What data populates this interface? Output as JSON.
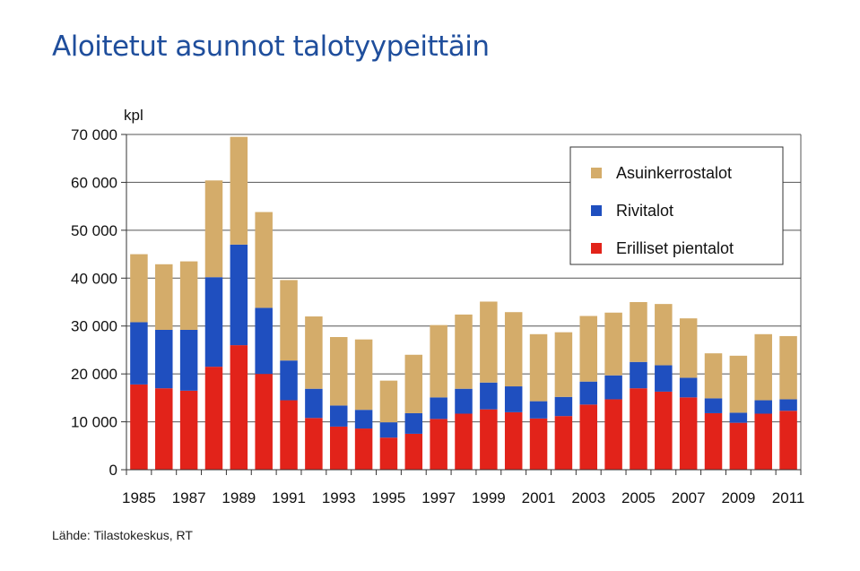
{
  "title": "Aloitetut asunnot talotyypeittäin",
  "source": "Lähde: Tilastokeskus,  RT",
  "chart_data": {
    "type": "bar",
    "stacked": true,
    "ylabel": "kpl",
    "ylim": [
      0,
      70000
    ],
    "yticks": [
      0,
      10000,
      20000,
      30000,
      40000,
      50000,
      60000,
      70000
    ],
    "ytick_labels": [
      "0",
      "10 000",
      "20 000",
      "30 000",
      "40 000",
      "50 000",
      "60 000",
      "70 000"
    ],
    "grid": true,
    "legend_position": "top-right",
    "categories": [
      "1985",
      "1986",
      "1987",
      "1988",
      "1989",
      "1990",
      "1991",
      "1992",
      "1993",
      "1994",
      "1995",
      "1996",
      "1997",
      "1998",
      "1999",
      "2000",
      "2001",
      "2002",
      "2003",
      "2004",
      "2005",
      "2006",
      "2007",
      "2008",
      "2009",
      "2010",
      "2011"
    ],
    "xtick_labels": [
      "1985",
      "",
      "1987",
      "",
      "1989",
      "",
      "1991",
      "",
      "1993",
      "",
      "1995",
      "",
      "1997",
      "",
      "1999",
      "",
      "2001",
      "",
      "2003",
      "",
      "2005",
      "",
      "2007",
      "",
      "2009",
      "",
      "2011"
    ],
    "series": [
      {
        "name": "Erilliset  pientalot",
        "color": "#e2231a",
        "values": [
          17800,
          17000,
          16500,
          21500,
          26000,
          20000,
          14500,
          10800,
          9000,
          8600,
          6700,
          7500,
          10600,
          11700,
          12600,
          12000,
          10700,
          11200,
          13600,
          14700,
          17000,
          16300,
          15100,
          11800,
          9800,
          11700,
          12300
        ]
      },
      {
        "name": "Rivitalot",
        "color": "#1f4fbf",
        "values": [
          13000,
          12200,
          12700,
          18700,
          21000,
          13800,
          8300,
          6100,
          4400,
          3900,
          3200,
          4300,
          4500,
          5200,
          5600,
          5400,
          3600,
          4000,
          4800,
          5000,
          5500,
          5500,
          4100,
          3100,
          2100,
          2800,
          2400
        ]
      },
      {
        "name": "Asuinkerrostalot",
        "color": "#d4ac6a",
        "values": [
          14200,
          13700,
          14300,
          20200,
          22500,
          20000,
          16800,
          15100,
          14300,
          14700,
          8700,
          12200,
          15100,
          15500,
          16900,
          15500,
          14000,
          13500,
          13700,
          13100,
          12500,
          12800,
          12400,
          9400,
          11900,
          13800,
          13200
        ]
      }
    ]
  }
}
